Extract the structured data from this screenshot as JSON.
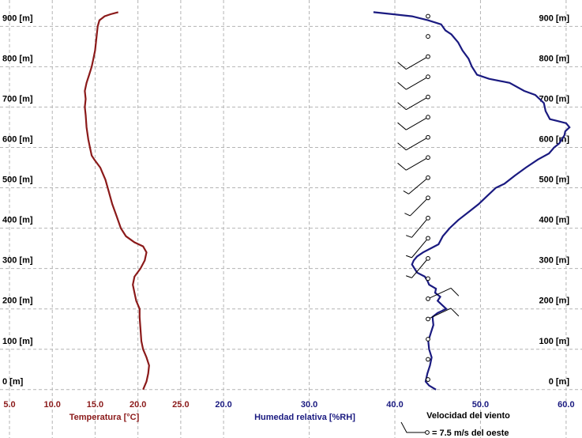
{
  "chart_data": {
    "type": "line",
    "y_axis": {
      "ticks": [
        0,
        100,
        200,
        300,
        400,
        500,
        600,
        700,
        800,
        900
      ],
      "tick_labels": [
        "0 [m]",
        "100 [m]",
        "200 [m]",
        "300 [m]",
        "400 [m]",
        "500 [m]",
        "600 [m]",
        "700 [m]",
        "800 [m]",
        "900 [m]"
      ],
      "ylim": [
        -18,
        930
      ]
    },
    "temperature": {
      "xlabel": "Temperatura [°C]",
      "ticks": [
        5,
        10,
        15,
        20,
        25
      ],
      "tick_labels": [
        "5.0",
        "10.0",
        "15.0",
        "20.0",
        "25.0"
      ],
      "xlim": [
        5,
        27.5
      ],
      "color": "#8b1a1a",
      "points": [
        [
          20.6,
          0
        ],
        [
          21.0,
          20
        ],
        [
          21.2,
          40
        ],
        [
          21.3,
          60
        ],
        [
          21.0,
          80
        ],
        [
          20.6,
          100
        ],
        [
          20.4,
          120
        ],
        [
          20.3,
          150
        ],
        [
          20.2,
          180
        ],
        [
          20.2,
          200
        ],
        [
          19.8,
          220
        ],
        [
          19.6,
          240
        ],
        [
          19.4,
          260
        ],
        [
          19.6,
          280
        ],
        [
          20.3,
          300
        ],
        [
          20.8,
          320
        ],
        [
          21.0,
          340
        ],
        [
          20.6,
          355
        ],
        [
          19.6,
          365
        ],
        [
          18.6,
          380
        ],
        [
          18.0,
          400
        ],
        [
          17.5,
          430
        ],
        [
          17.0,
          460
        ],
        [
          16.6,
          490
        ],
        [
          16.2,
          520
        ],
        [
          15.6,
          550
        ],
        [
          14.9,
          570
        ],
        [
          14.6,
          580
        ],
        [
          14.4,
          600
        ],
        [
          14.2,
          620
        ],
        [
          14.0,
          650
        ],
        [
          13.9,
          680
        ],
        [
          13.8,
          700
        ],
        [
          13.9,
          720
        ],
        [
          13.8,
          740
        ],
        [
          14.0,
          760
        ],
        [
          14.3,
          780
        ],
        [
          14.6,
          800
        ],
        [
          14.8,
          820
        ],
        [
          15.0,
          840
        ],
        [
          15.1,
          860
        ],
        [
          15.2,
          880
        ],
        [
          15.3,
          900
        ],
        [
          15.5,
          915
        ],
        [
          16.1,
          925
        ],
        [
          16.8,
          930
        ],
        [
          17.7,
          935
        ]
      ]
    },
    "humidity": {
      "xlabel": "Humedad relativa [%RH]",
      "ticks": [
        20,
        30,
        40,
        50,
        60
      ],
      "tick_labels": [
        "20.0",
        "30.0",
        "40.0",
        "50.0",
        "60.0"
      ],
      "xlim": [
        17.5,
        40
      ],
      "color": "#1a1a80",
      "points": [
        [
          44.8,
          0
        ],
        [
          44.0,
          10
        ],
        [
          43.6,
          20
        ],
        [
          43.8,
          40
        ],
        [
          44.1,
          60
        ],
        [
          44.3,
          80
        ],
        [
          44.0,
          100
        ],
        [
          43.9,
          120
        ],
        [
          44.2,
          140
        ],
        [
          44.5,
          160
        ],
        [
          44.4,
          180
        ],
        [
          45.0,
          190
        ],
        [
          46.0,
          200
        ],
        [
          45.5,
          210
        ],
        [
          45.0,
          220
        ],
        [
          45.3,
          230
        ],
        [
          44.7,
          240
        ],
        [
          44.8,
          250
        ],
        [
          44.0,
          260
        ],
        [
          43.8,
          270
        ],
        [
          43.5,
          280
        ],
        [
          42.6,
          290
        ],
        [
          42.3,
          300
        ],
        [
          42.0,
          310
        ],
        [
          42.2,
          320
        ],
        [
          42.6,
          330
        ],
        [
          43.3,
          340
        ],
        [
          44.2,
          350
        ],
        [
          45.1,
          360
        ],
        [
          45.6,
          380
        ],
        [
          46.4,
          400
        ],
        [
          47.4,
          420
        ],
        [
          48.6,
          440
        ],
        [
          49.8,
          460
        ],
        [
          50.8,
          480
        ],
        [
          51.8,
          500
        ],
        [
          52.8,
          510
        ],
        [
          54.0,
          530
        ],
        [
          55.3,
          550
        ],
        [
          56.7,
          570
        ],
        [
          58.0,
          585
        ],
        [
          58.6,
          600
        ],
        [
          59.2,
          610
        ],
        [
          59.8,
          630
        ],
        [
          59.9,
          640
        ],
        [
          60.4,
          650
        ],
        [
          60.0,
          660
        ],
        [
          59.1,
          665
        ],
        [
          58.1,
          670
        ],
        [
          57.6,
          690
        ],
        [
          57.4,
          710
        ],
        [
          56.4,
          730
        ],
        [
          55.1,
          740
        ],
        [
          53.4,
          760
        ],
        [
          51.0,
          770
        ],
        [
          49.6,
          780
        ],
        [
          49.0,
          800
        ],
        [
          48.6,
          820
        ],
        [
          47.9,
          840
        ],
        [
          47.4,
          860
        ],
        [
          46.6,
          880
        ],
        [
          45.9,
          890
        ],
        [
          45.4,
          905
        ],
        [
          43.9,
          915
        ],
        [
          42.0,
          925
        ],
        [
          39.8,
          930
        ],
        [
          37.5,
          935
        ]
      ]
    },
    "wind": {
      "xlabel": "Velocidad del viento",
      "legend": "= 7.5 m/s del oeste",
      "color": "#000000",
      "barbs": [
        {
          "z": 25,
          "spd": 0,
          "dir": 0
        },
        {
          "z": 75,
          "spd": 0,
          "dir": 0
        },
        {
          "z": 125,
          "spd": 0,
          "dir": 0
        },
        {
          "z": 175,
          "spd": 5,
          "dir": 65
        },
        {
          "z": 225,
          "spd": 5,
          "dir": 65
        },
        {
          "z": 275,
          "spd": 0,
          "dir": 0
        },
        {
          "z": 325,
          "spd": 2.5,
          "dir": 220
        },
        {
          "z": 375,
          "spd": 2.5,
          "dir": 220
        },
        {
          "z": 425,
          "spd": 2.5,
          "dir": 220
        },
        {
          "z": 475,
          "spd": 2.5,
          "dir": 225
        },
        {
          "z": 525,
          "spd": 2.5,
          "dir": 230
        },
        {
          "z": 575,
          "spd": 5,
          "dir": 240
        },
        {
          "z": 625,
          "spd": 5,
          "dir": 240
        },
        {
          "z": 675,
          "spd": 5,
          "dir": 240
        },
        {
          "z": 725,
          "spd": 5,
          "dir": 240
        },
        {
          "z": 775,
          "spd": 5,
          "dir": 240
        },
        {
          "z": 825,
          "spd": 5,
          "dir": 240
        },
        {
          "z": 875,
          "spd": 0,
          "dir": 0
        },
        {
          "z": 925,
          "spd": 0,
          "dir": 0
        }
      ]
    }
  }
}
